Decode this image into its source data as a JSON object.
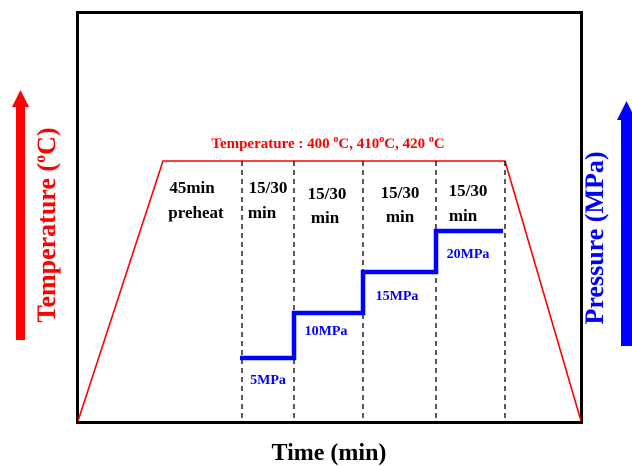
{
  "colors": {
    "temperature": "#ff0000",
    "pressure": "#0000ff",
    "frame": "#000000",
    "text": "#000000"
  },
  "axes": {
    "xlabel": "Time (min)",
    "ylabel_left": "Temperature (°C)",
    "ylabel_right": "Pressure (MPa)",
    "ylabel_left_parts": {
      "before": "Temperature (",
      "sup": "o",
      "after": "C)"
    }
  },
  "temperature_label": "Temperature : 400 °C, 410°C, 420 °C",
  "temperature_label_parts": {
    "t1": "Temperature : 400 ",
    "s1": "o",
    "t2": "C, 410",
    "s2": "o",
    "t3": "C, 420 ",
    "s3": "o",
    "t4": "C"
  },
  "stages": [
    {
      "line1": "45min",
      "line2": "preheat"
    },
    {
      "line1": "15/30",
      "line2": "min"
    },
    {
      "line1": "15/30",
      "line2": "min"
    },
    {
      "line1": "15/30",
      "line2": "min"
    },
    {
      "line1": "15/30",
      "line2": "min"
    }
  ],
  "pressure_steps": [
    {
      "label": "5MPa",
      "value": 5
    },
    {
      "label": "10MPa",
      "value": 10
    },
    {
      "label": "15MPa",
      "value": 15
    },
    {
      "label": "20MPa",
      "value": 20
    }
  ]
}
